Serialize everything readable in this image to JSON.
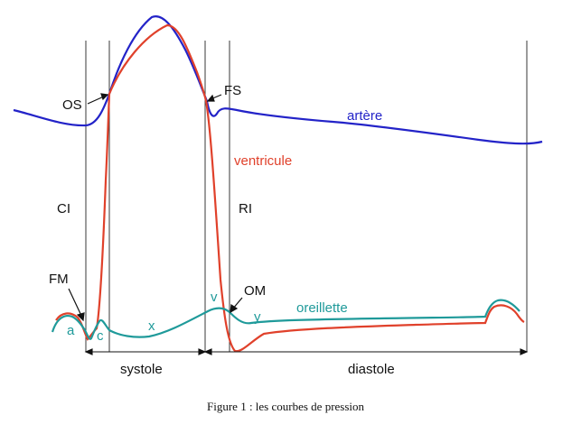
{
  "figure": {
    "caption": "Figure 1 : les courbes de pression",
    "curves": [
      {
        "name": "artère",
        "color": "#2323c8"
      },
      {
        "name": "ventricule",
        "color": "#e0412b"
      },
      {
        "name": "oreillette",
        "color": "#1f9a9a"
      }
    ],
    "labels": {
      "os": "OS",
      "fs": "FS",
      "ci": "CI",
      "ri": "RI",
      "fm": "FM",
      "om": "OM",
      "a": "a",
      "c": "c",
      "x": "x",
      "v": "v",
      "y": "y"
    },
    "phases": {
      "systole": "systole",
      "diastole": "diastole"
    }
  }
}
